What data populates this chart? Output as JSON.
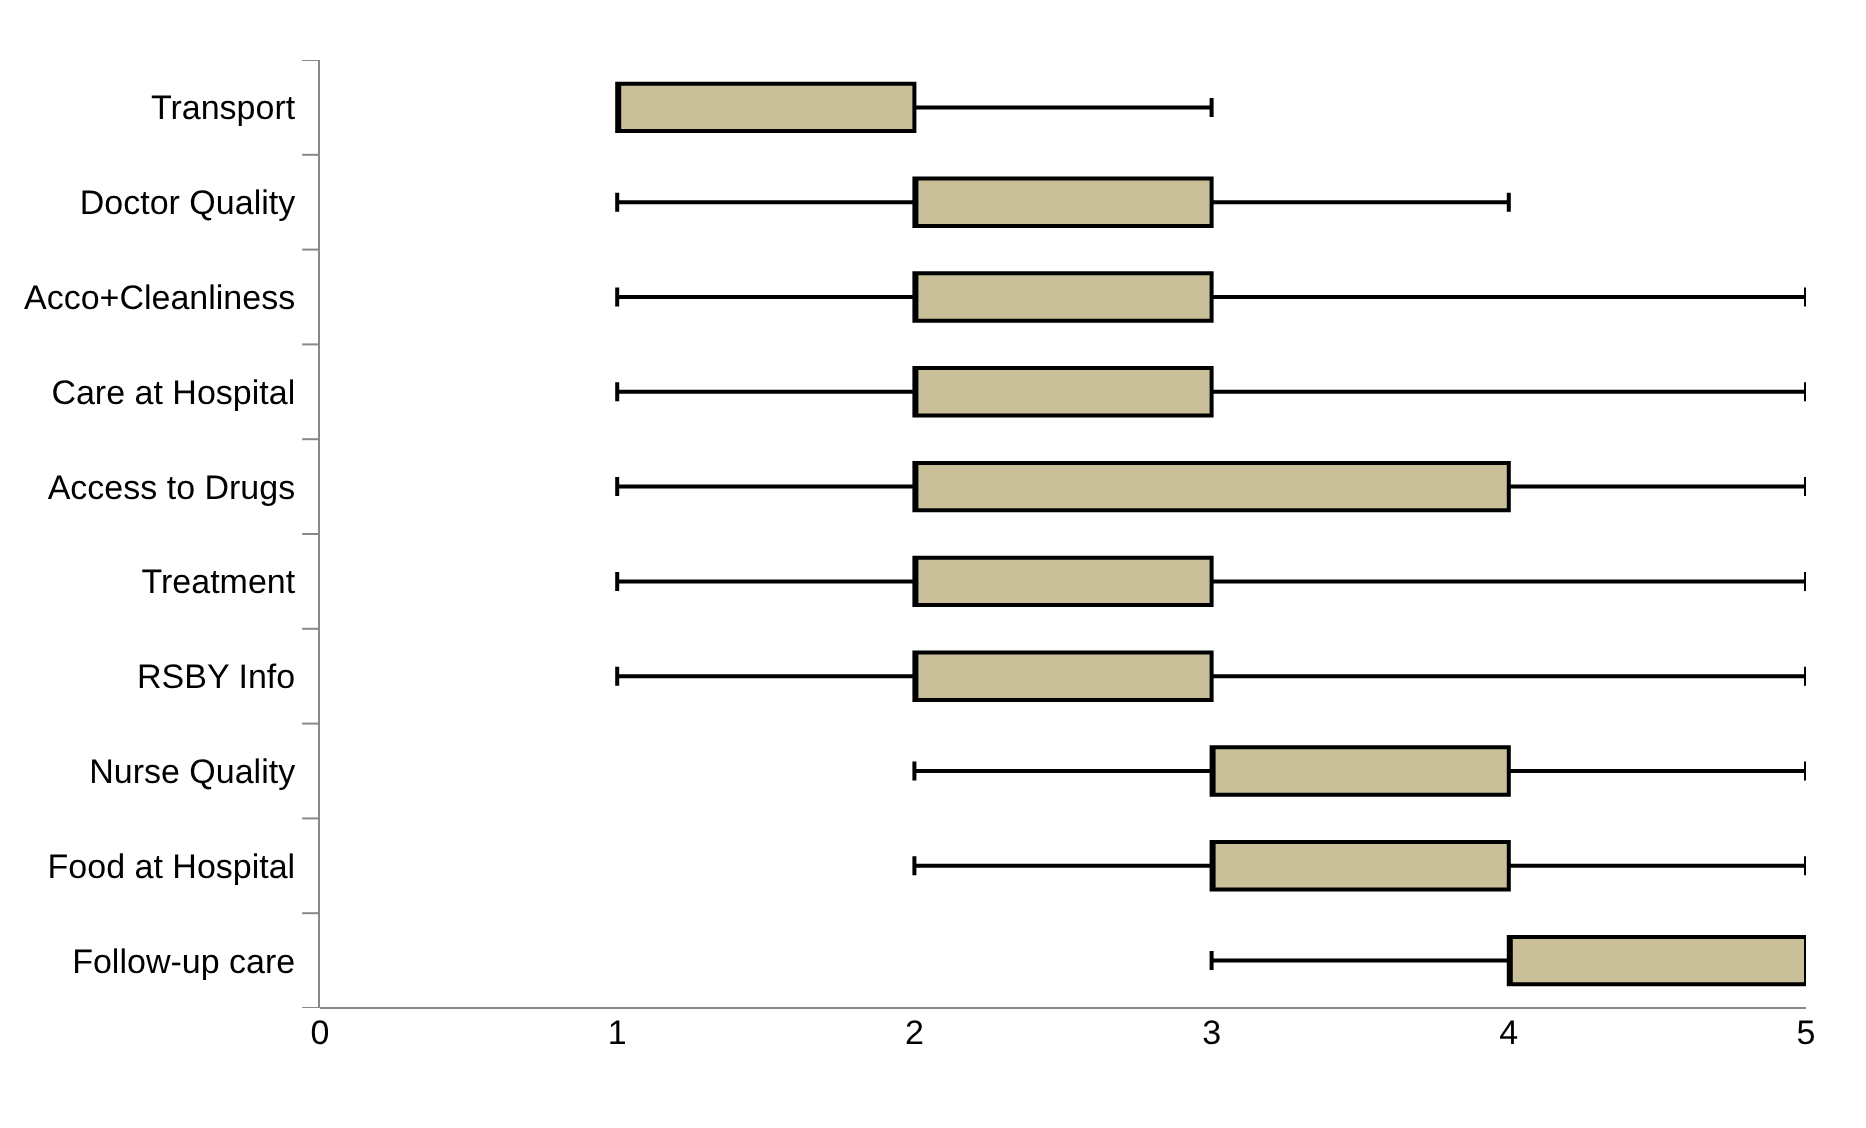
{
  "chart_data": {
    "type": "box",
    "orientation": "horizontal",
    "categories": [
      "Transport",
      "Doctor Quality",
      "Acco+Cleanliness",
      "Care at Hospital",
      "Access to Drugs",
      "Treatment",
      "RSBY Info",
      "Nurse Quality",
      "Food at Hospital",
      "Follow-up care"
    ],
    "boxes": [
      {
        "low": 1,
        "q1": 1,
        "median": 1,
        "q3": 2,
        "high": 3
      },
      {
        "low": 1,
        "q1": 2,
        "median": 2,
        "q3": 3,
        "high": 4
      },
      {
        "low": 1,
        "q1": 2,
        "median": 2,
        "q3": 3,
        "high": 5
      },
      {
        "low": 1,
        "q1": 2,
        "median": 2,
        "q3": 3,
        "high": 5
      },
      {
        "low": 1,
        "q1": 2,
        "median": 2,
        "q3": 4,
        "high": 5
      },
      {
        "low": 1,
        "q1": 2,
        "median": 2,
        "q3": 3,
        "high": 5
      },
      {
        "low": 1,
        "q1": 2,
        "median": 2,
        "q3": 3,
        "high": 5
      },
      {
        "low": 2,
        "q1": 3,
        "median": 3,
        "q3": 4,
        "high": 5
      },
      {
        "low": 2,
        "q1": 3,
        "median": 3,
        "q3": 4,
        "high": 5
      },
      {
        "low": 3,
        "q1": 4,
        "median": 4,
        "q3": 5,
        "high": 5
      }
    ],
    "color": "#c9bf98",
    "xlim": [
      0,
      5
    ],
    "xticks": [
      0,
      1,
      2,
      3,
      4,
      5
    ]
  }
}
